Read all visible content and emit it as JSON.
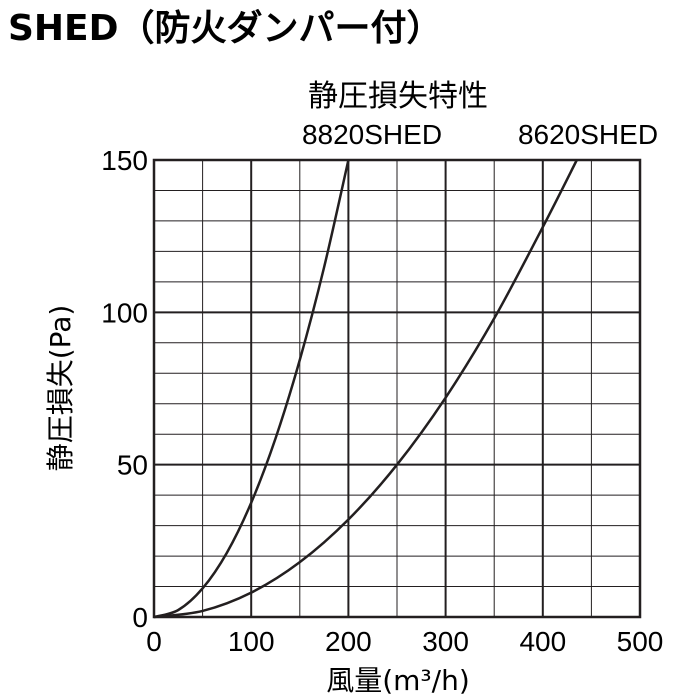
{
  "page_title": "SHED（防火ダンパー付）",
  "chart_data": {
    "type": "line",
    "title": "静圧損失特性",
    "xlabel": "風量(m³/h)",
    "ylabel": "静圧損失(Pa)",
    "xlim": [
      0,
      500
    ],
    "ylim": [
      0,
      150
    ],
    "x_ticks": [
      "0",
      "100",
      "200",
      "300",
      "400",
      "500"
    ],
    "y_ticks": [
      "0",
      "50",
      "100",
      "150"
    ],
    "grid": true,
    "series": [
      {
        "name": "8820SHED",
        "x": [
          0,
          25,
          50,
          75,
          100,
          125,
          150,
          175,
          200
        ],
        "y": [
          0,
          2.3,
          9.4,
          21.1,
          37.5,
          58.6,
          84.4,
          114.8,
          150
        ]
      },
      {
        "name": "8620SHED",
        "x": [
          0,
          50,
          100,
          150,
          200,
          250,
          300,
          350,
          400,
          435
        ],
        "y": [
          0,
          2,
          8,
          18,
          32,
          50,
          72,
          98,
          128,
          150
        ]
      }
    ],
    "colors": {
      "line": "#231f20",
      "grid": "#231f20"
    }
  }
}
